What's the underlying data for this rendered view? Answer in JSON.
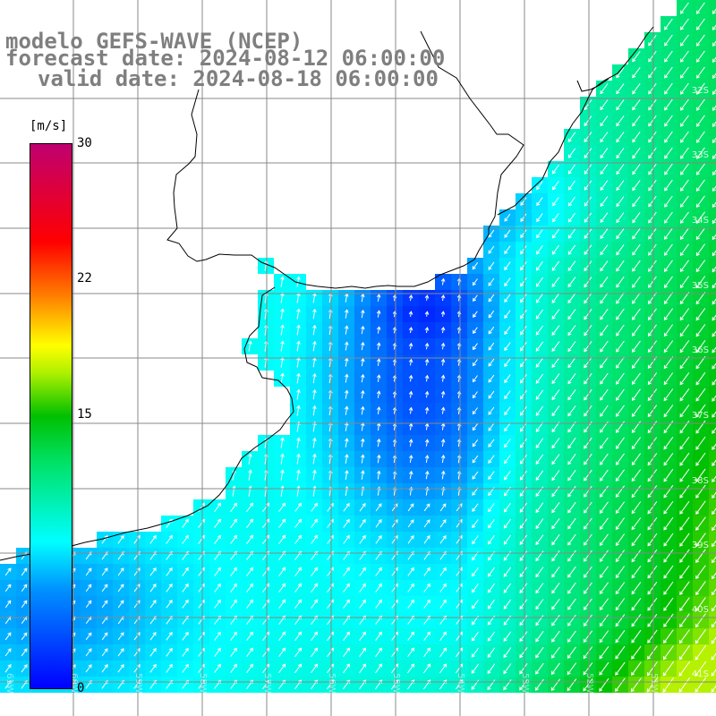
{
  "title": {
    "line1": "modelo GEFS-WAVE (NCEP)",
    "line2": "forecast date: 2024-08-12 06:00:00",
    "line3": "valid date: 2024-08-18 06:00:00"
  },
  "colorbar": {
    "units": "[m/s]",
    "tick_30": "30",
    "tick_22": "22",
    "tick_15": "15",
    "tick_0": "0",
    "colors": [
      "#0000ff",
      "#0090ff",
      "#00ffff",
      "#00e060",
      "#00c000",
      "#b0f000",
      "#ffff00",
      "#ff8000",
      "#ff0000",
      "#c00070"
    ]
  },
  "latitude_labels": [
    "32S",
    "33S",
    "34S",
    "35S",
    "36S",
    "37S",
    "38S",
    "39S",
    "40S",
    "41S"
  ],
  "longitude_labels": [
    "61W",
    "60W",
    "59W",
    "58W",
    "57W",
    "56W",
    "55W",
    "54W",
    "53W",
    "52W",
    "51W"
  ],
  "chart_data": {
    "type": "heatmap",
    "variable": "wind speed",
    "units": "m/s",
    "value_range": [
      0,
      30
    ],
    "longitude_range": [
      -62,
      -50
    ],
    "latitude_range": [
      -41.3,
      -30.5
    ],
    "description_of_field": "low speeds (blue, ~2-6 m/s) near the Rio de la Plata estuary and coast; moderate (cyan, ~8-10 m/s) over the shelf; high (green to yellow, ~13-17 m/s) in the south-east"
  }
}
